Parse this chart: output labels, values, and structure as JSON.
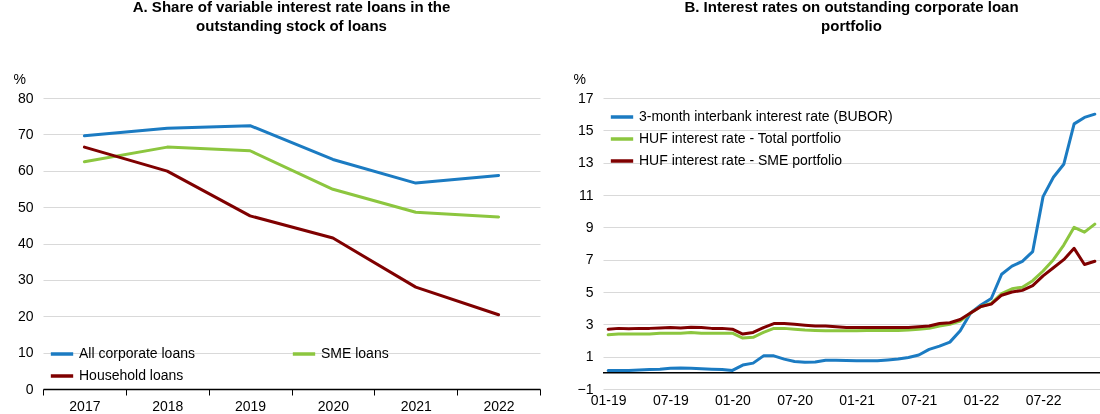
{
  "chart_data": [
    {
      "type": "line",
      "title": "A. Share of variable interest rate loans in the outstanding stock of loans",
      "ylabel": "%",
      "categories": [
        "2017",
        "2018",
        "2019",
        "2020",
        "2021",
        "2022"
      ],
      "ylim": [
        0,
        80
      ],
      "yticks": [
        0,
        10,
        20,
        30,
        40,
        50,
        60,
        70,
        80
      ],
      "grid": "y",
      "legend": "bottom left",
      "series": [
        {
          "name": "All corporate loans",
          "color": "#1b7bc2",
          "values": [
            69.6,
            71.7,
            72.4,
            63.1,
            56.6,
            58.7
          ]
        },
        {
          "name": "SME loans",
          "color": "#8cc63f",
          "values": [
            62.5,
            66.5,
            65.5,
            54.9,
            48.6,
            47.3
          ]
        },
        {
          "name": "Household loans",
          "color": "#7f0000",
          "values": [
            66.5,
            59.9,
            47.6,
            41.5,
            28.0,
            20.4
          ]
        }
      ]
    },
    {
      "type": "line",
      "title": "B. Interest rates on outstanding corporate loan portfolio",
      "ylabel": "%",
      "categories": [
        "01-19",
        null,
        null,
        null,
        null,
        null,
        "07-19",
        null,
        null,
        null,
        null,
        null,
        "01-20",
        null,
        null,
        null,
        null,
        null,
        "07-20",
        null,
        null,
        null,
        null,
        null,
        "01-21",
        null,
        null,
        null,
        null,
        null,
        "07-21",
        null,
        null,
        null,
        null,
        null,
        "01-22",
        null,
        null,
        null,
        null,
        null,
        "07-22",
        null,
        null,
        null,
        null,
        null
      ],
      "ylim": [
        -1,
        17
      ],
      "yticks": [
        -1,
        1,
        3,
        5,
        7,
        9,
        11,
        13,
        15,
        17
      ],
      "grid": "y",
      "legend": "top left",
      "ref_lines": [
        {
          "axis": "y",
          "value": 0,
          "color": "#000000"
        }
      ],
      "series": [
        {
          "name": "3-month interbank interest rate (BUBOR)",
          "color": "#1b7bc2",
          "values": [
            0.15,
            0.15,
            0.15,
            0.17,
            0.2,
            0.22,
            0.28,
            0.3,
            0.28,
            0.25,
            0.22,
            0.2,
            0.15,
            0.48,
            0.6,
            1.05,
            1.05,
            0.85,
            0.7,
            0.65,
            0.67,
            0.78,
            0.78,
            0.76,
            0.75,
            0.75,
            0.75,
            0.8,
            0.85,
            0.95,
            1.1,
            1.45,
            1.65,
            1.9,
            2.6,
            3.7,
            4.2,
            4.6,
            6.1,
            6.6,
            6.9,
            7.5,
            10.9,
            12.1,
            12.9,
            15.4,
            15.8,
            16.0
          ]
        },
        {
          "name": "HUF interest rate - Total portfolio",
          "color": "#8cc63f",
          "values": [
            2.35,
            2.4,
            2.4,
            2.4,
            2.4,
            2.45,
            2.45,
            2.45,
            2.5,
            2.45,
            2.45,
            2.45,
            2.45,
            2.15,
            2.2,
            2.5,
            2.75,
            2.75,
            2.7,
            2.65,
            2.62,
            2.6,
            2.6,
            2.6,
            2.6,
            2.62,
            2.62,
            2.62,
            2.62,
            2.65,
            2.7,
            2.75,
            2.9,
            3.0,
            3.2,
            3.7,
            4.1,
            4.3,
            4.9,
            5.2,
            5.3,
            5.7,
            6.3,
            7.0,
            7.9,
            9.0,
            8.7,
            9.2
          ]
        },
        {
          "name": "HUF interest rate - SME portfolio",
          "color": "#7f0000",
          "values": [
            2.7,
            2.75,
            2.72,
            2.75,
            2.75,
            2.78,
            2.8,
            2.78,
            2.82,
            2.8,
            2.75,
            2.75,
            2.7,
            2.4,
            2.5,
            2.8,
            3.05,
            3.05,
            3.0,
            2.95,
            2.9,
            2.9,
            2.85,
            2.8,
            2.8,
            2.8,
            2.8,
            2.8,
            2.8,
            2.8,
            2.85,
            2.9,
            3.05,
            3.1,
            3.3,
            3.7,
            4.1,
            4.25,
            4.8,
            5.0,
            5.1,
            5.4,
            6.0,
            6.5,
            7.0,
            7.7,
            6.7,
            6.9
          ]
        }
      ]
    }
  ]
}
